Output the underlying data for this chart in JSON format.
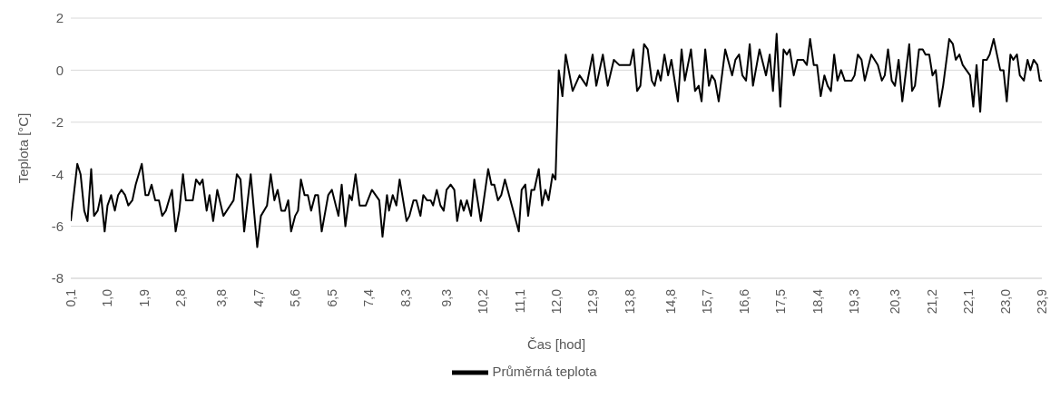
{
  "chart_data": {
    "type": "line",
    "xlabel": "Čas [hod]",
    "ylabel": "Teplota [°C]",
    "x": [
      0.1,
      0.26,
      0.34,
      0.43,
      0.51,
      0.6,
      0.67,
      0.76,
      0.84,
      0.93,
      1.0,
      1.09,
      1.18,
      1.26,
      1.34,
      1.43,
      1.51,
      1.61,
      1.69,
      1.84,
      1.93,
      2.0,
      2.08,
      2.17,
      2.26,
      2.34,
      2.43,
      2.58,
      2.67,
      2.76,
      2.85,
      2.92,
      3.09,
      3.17,
      3.26,
      3.33,
      3.43,
      3.5,
      3.59,
      3.69,
      3.84,
      4.09,
      4.17,
      4.26,
      4.35,
      4.51,
      4.67,
      4.76,
      4.91,
      5.0,
      5.09,
      5.17,
      5.26,
      5.35,
      5.43,
      5.5,
      5.6,
      5.67,
      5.74,
      5.83,
      5.91,
      5.99,
      6.09,
      6.16,
      6.25,
      6.41,
      6.5,
      6.66,
      6.74,
      6.83,
      6.93,
      6.99,
      7.08,
      7.18,
      7.33,
      7.48,
      7.66,
      7.74,
      7.85,
      7.9,
      7.99,
      8.08,
      8.16,
      8.33,
      8.4,
      8.5,
      8.57,
      8.67,
      8.74,
      8.83,
      8.92,
      8.98,
      9.07,
      9.16,
      9.24,
      9.31,
      9.41,
      9.5,
      9.57,
      9.66,
      9.73,
      9.81,
      9.91,
      9.99,
      10.15,
      10.33,
      10.41,
      10.48,
      10.57,
      10.65,
      10.74,
      10.91,
      11.08,
      11.15,
      11.24,
      11.31,
      11.39,
      11.46,
      11.57,
      11.65,
      11.73,
      11.81,
      11.91,
      11.98,
      12.06,
      12.15,
      12.23,
      12.4,
      12.57,
      12.74,
      12.89,
      12.98,
      13.14,
      13.26,
      13.41,
      13.54,
      13.81,
      13.89,
      13.98,
      14.06,
      14.15,
      14.24,
      14.34,
      14.41,
      14.49,
      14.56,
      14.65,
      14.74,
      14.82,
      14.98,
      15.07,
      15.15,
      15.3,
      15.4,
      15.49,
      15.56,
      15.65,
      15.74,
      15.81,
      15.89,
      15.98,
      16.14,
      16.31,
      16.39,
      16.48,
      16.56,
      16.65,
      16.74,
      16.82,
      16.98,
      17.14,
      17.23,
      17.31,
      17.4,
      17.49,
      17.57,
      17.65,
      17.72,
      17.82,
      17.91,
      18.05,
      18.14,
      18.22,
      18.31,
      18.39,
      18.48,
      18.57,
      18.65,
      18.73,
      18.81,
      18.89,
      18.98,
      19.07,
      19.24,
      19.31,
      19.39,
      19.48,
      19.56,
      19.72,
      19.88,
      19.98,
      20.05,
      20.13,
      20.22,
      20.3,
      20.39,
      20.48,
      20.65,
      20.72,
      20.79,
      20.89,
      20.98,
      21.05,
      21.14,
      21.22,
      21.3,
      21.39,
      21.48,
      21.63,
      21.72,
      21.79,
      21.88,
      21.96,
      22.05,
      22.14,
      22.22,
      22.3,
      22.39,
      22.46,
      22.55,
      22.62,
      22.72,
      22.88,
      22.96,
      23.04,
      23.13,
      23.2,
      23.29,
      23.36,
      23.46,
      23.55,
      23.62,
      23.7,
      23.79,
      23.85,
      23.9
    ],
    "series": [
      {
        "name": "Průměrná teplota",
        "color": "#000000",
        "values": [
          -5.8,
          -3.6,
          -4.0,
          -5.4,
          -5.8,
          -3.8,
          -5.6,
          -5.4,
          -4.8,
          -6.2,
          -5.2,
          -4.8,
          -5.4,
          -4.8,
          -4.6,
          -4.8,
          -5.2,
          -5.0,
          -4.4,
          -3.6,
          -4.8,
          -4.8,
          -4.4,
          -5.0,
          -5.0,
          -5.6,
          -5.4,
          -4.6,
          -6.2,
          -5.4,
          -4.0,
          -5.0,
          -5.0,
          -4.2,
          -4.4,
          -4.2,
          -5.4,
          -4.8,
          -5.8,
          -4.6,
          -5.6,
          -5.0,
          -4.0,
          -4.2,
          -6.2,
          -4.0,
          -6.8,
          -5.6,
          -5.2,
          -4.0,
          -5.0,
          -4.6,
          -5.4,
          -5.4,
          -5.0,
          -6.2,
          -5.6,
          -5.4,
          -4.2,
          -4.8,
          -4.8,
          -5.4,
          -4.8,
          -4.8,
          -6.2,
          -4.8,
          -4.6,
          -5.6,
          -4.4,
          -6.0,
          -4.8,
          -5.0,
          -4.0,
          -5.2,
          -5.2,
          -4.6,
          -5.0,
          -6.4,
          -4.8,
          -5.4,
          -4.8,
          -5.2,
          -4.2,
          -5.8,
          -5.6,
          -5.0,
          -5.0,
          -5.6,
          -4.8,
          -5.0,
          -5.0,
          -5.2,
          -4.6,
          -5.2,
          -5.4,
          -4.6,
          -4.4,
          -4.6,
          -5.8,
          -5.0,
          -5.4,
          -5.0,
          -5.6,
          -4.2,
          -5.8,
          -3.8,
          -4.4,
          -4.4,
          -5.0,
          -4.8,
          -4.2,
          -5.2,
          -6.2,
          -4.6,
          -4.4,
          -5.6,
          -4.6,
          -4.6,
          -3.8,
          -5.2,
          -4.6,
          -5.0,
          -4.0,
          -4.2,
          0.0,
          -1.0,
          0.6,
          -0.8,
          -0.2,
          -0.6,
          0.6,
          -0.6,
          0.6,
          -0.6,
          0.4,
          0.2,
          0.2,
          0.8,
          -0.8,
          -0.6,
          1.0,
          0.8,
          -0.4,
          -0.6,
          0.0,
          -0.4,
          0.6,
          -0.2,
          0.4,
          -1.2,
          0.8,
          -0.4,
          0.8,
          -0.8,
          -0.6,
          -1.2,
          0.8,
          -0.6,
          -0.2,
          -0.4,
          -1.2,
          0.8,
          -0.2,
          0.4,
          0.6,
          -0.2,
          -0.4,
          1.0,
          -0.6,
          0.8,
          -0.2,
          0.6,
          -0.8,
          1.4,
          -1.4,
          0.8,
          0.6,
          0.8,
          -0.2,
          0.4,
          0.4,
          0.2,
          1.2,
          0.2,
          0.2,
          -1.0,
          -0.2,
          -0.6,
          -0.8,
          0.6,
          -0.4,
          0.0,
          -0.4,
          -0.4,
          -0.2,
          0.6,
          0.4,
          -0.4,
          0.6,
          0.2,
          -0.4,
          -0.2,
          0.8,
          -0.4,
          -0.6,
          0.4,
          -1.2,
          1.0,
          -0.8,
          -0.6,
          0.8,
          0.8,
          0.6,
          0.6,
          -0.2,
          0.0,
          -1.4,
          -0.6,
          1.2,
          1.0,
          0.4,
          0.6,
          0.2,
          0.0,
          -0.2,
          -1.4,
          0.2,
          -1.6,
          0.4,
          0.4,
          0.6,
          1.2,
          0.0,
          0.0,
          -1.2,
          0.6,
          0.4,
          0.6,
          -0.2,
          -0.4,
          0.4,
          0.0,
          0.4,
          0.2,
          -0.4,
          -0.4
        ]
      }
    ],
    "xlim": [
      0.1,
      23.9
    ],
    "xticks": [
      {
        "value": 0.1,
        "label": "0,1"
      },
      {
        "value": 1.0,
        "label": "1,0"
      },
      {
        "value": 1.9,
        "label": "1,9"
      },
      {
        "value": 2.8,
        "label": "2,8"
      },
      {
        "value": 3.8,
        "label": "3,8"
      },
      {
        "value": 4.7,
        "label": "4,7"
      },
      {
        "value": 5.6,
        "label": "5,6"
      },
      {
        "value": 6.5,
        "label": "6,5"
      },
      {
        "value": 7.4,
        "label": "7,4"
      },
      {
        "value": 8.3,
        "label": "8,3"
      },
      {
        "value": 9.3,
        "label": "9,3"
      },
      {
        "value": 10.2,
        "label": "10,2"
      },
      {
        "value": 11.1,
        "label": "11,1"
      },
      {
        "value": 12.0,
        "label": "12,0"
      },
      {
        "value": 12.9,
        "label": "12,9"
      },
      {
        "value": 13.8,
        "label": "13,8"
      },
      {
        "value": 14.8,
        "label": "14,8"
      },
      {
        "value": 15.7,
        "label": "15,7"
      },
      {
        "value": 16.6,
        "label": "16,6"
      },
      {
        "value": 17.5,
        "label": "17,5"
      },
      {
        "value": 18.4,
        "label": "18,4"
      },
      {
        "value": 19.3,
        "label": "19,3"
      },
      {
        "value": 20.3,
        "label": "20,3"
      },
      {
        "value": 21.2,
        "label": "21,2"
      },
      {
        "value": 22.1,
        "label": "22,1"
      },
      {
        "value": 23.0,
        "label": "23,0"
      },
      {
        "value": 23.9,
        "label": "23,9"
      }
    ],
    "ylim": [
      -8,
      2
    ],
    "yticks": [
      -8,
      -6,
      -4,
      -2,
      0,
      2
    ],
    "grid": "y",
    "legend": "bottom",
    "marker": "none",
    "line_style": "solid"
  }
}
